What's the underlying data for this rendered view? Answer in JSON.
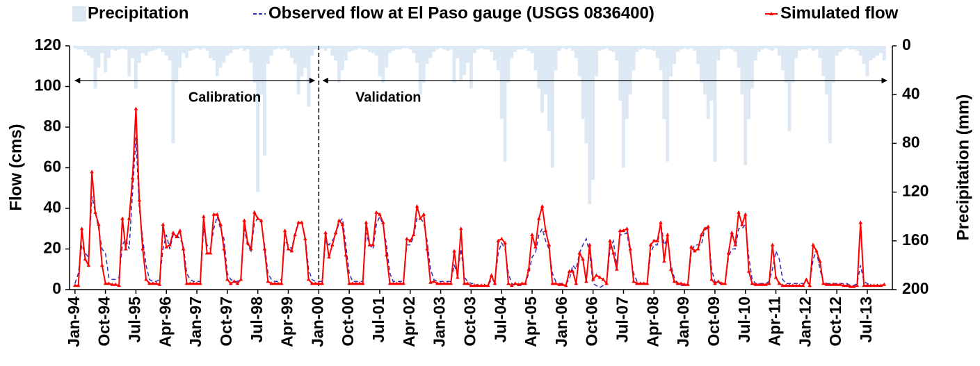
{
  "chart_data": {
    "type": "bar-line",
    "categories": [
      "Jan-94",
      null,
      null,
      null,
      null,
      null,
      null,
      null,
      null,
      "Oct-94",
      null,
      null,
      null,
      null,
      null,
      null,
      null,
      null,
      "Jul-95",
      null,
      null,
      null,
      null,
      null,
      null,
      null,
      null,
      "Apr-96",
      null,
      null,
      null,
      null,
      null,
      null,
      null,
      null,
      "Jan-97",
      null,
      null,
      null,
      null,
      null,
      null,
      null,
      null,
      "Oct-97",
      null,
      null,
      null,
      null,
      null,
      null,
      null,
      null,
      "Jul-98",
      null,
      null,
      null,
      null,
      null,
      null,
      null,
      null,
      "Apr-99",
      null,
      null,
      null,
      null,
      null,
      null,
      null,
      null,
      "Jan-00",
      null,
      null,
      null,
      null,
      null,
      null,
      null,
      null,
      "Oct-00",
      null,
      null,
      null,
      null,
      null,
      null,
      null,
      null,
      "Jul-01",
      null,
      null,
      null,
      null,
      null,
      null,
      null,
      null,
      "Apr-02",
      null,
      null,
      null,
      null,
      null,
      null,
      null,
      null,
      "Jan-03",
      null,
      null,
      null,
      null,
      null,
      null,
      null,
      null,
      "Oct-03",
      null,
      null,
      null,
      null,
      null,
      null,
      null,
      null,
      "Jul-04",
      null,
      null,
      null,
      null,
      null,
      null,
      null,
      null,
      "Apr-05",
      null,
      null,
      null,
      null,
      null,
      null,
      null,
      null,
      "Jan-06",
      null,
      null,
      null,
      null,
      null,
      null,
      null,
      null,
      "Oct-06",
      null,
      null,
      null,
      null,
      null,
      null,
      null,
      null,
      "Jul-07",
      null,
      null,
      null,
      null,
      null,
      null,
      null,
      null,
      "Apr-08",
      null,
      null,
      null,
      null,
      null,
      null,
      null,
      null,
      "Jan-09",
      null,
      null,
      null,
      null,
      null,
      null,
      null,
      null,
      "Oct-09",
      null,
      null,
      null,
      null,
      null,
      null,
      null,
      null,
      "Jul-10",
      null,
      null,
      null,
      null,
      null,
      null,
      null,
      null,
      "Apr-11",
      null,
      null,
      null,
      null,
      null,
      null,
      null,
      null,
      "Jan-12",
      null,
      null,
      null,
      null,
      null,
      null,
      null,
      null,
      "Oct-12",
      null,
      null,
      null,
      null,
      null,
      null,
      null,
      null,
      "Jul-13",
      null,
      null,
      null,
      null,
      null
    ],
    "series": [
      {
        "name": "Precipitation",
        "type": "bar",
        "axis": "y2",
        "color": "#dce9f5",
        "values": [
          2,
          3,
          3,
          5,
          8,
          10,
          35,
          18,
          6,
          22,
          10,
          3,
          4,
          3,
          2,
          3,
          25,
          10,
          35,
          14,
          6,
          8,
          5,
          4,
          3,
          2,
          5,
          8,
          12,
          80,
          30,
          18,
          6,
          10,
          4,
          3,
          2,
          3,
          2,
          4,
          10,
          12,
          25,
          18,
          14,
          8,
          6,
          3,
          3,
          2,
          4,
          3,
          14,
          30,
          120,
          40,
          90,
          15,
          8,
          3,
          2,
          3,
          2,
          4,
          10,
          15,
          40,
          25,
          18,
          50,
          8,
          3,
          3,
          2,
          4,
          2,
          8,
          12,
          30,
          20,
          12,
          5,
          4,
          3,
          2,
          3,
          3,
          5,
          6,
          8,
          25,
          30,
          18,
          6,
          4,
          3,
          3,
          2,
          2,
          3,
          6,
          14,
          40,
          30,
          15,
          10,
          5,
          3,
          2,
          3,
          4,
          3,
          30,
          10,
          28,
          24,
          14,
          35,
          6,
          3,
          2,
          3,
          3,
          5,
          12,
          20,
          60,
          95,
          30,
          10,
          5,
          3,
          3,
          2,
          4,
          6,
          20,
          35,
          55,
          40,
          70,
          100,
          20,
          4,
          2,
          3,
          2,
          4,
          10,
          25,
          60,
          80,
          130,
          110,
          25,
          4,
          3,
          2,
          4,
          5,
          12,
          45,
          100,
          60,
          40,
          20,
          5,
          3,
          2,
          3,
          3,
          4,
          10,
          20,
          60,
          95,
          25,
          15,
          5,
          3,
          2,
          3,
          2,
          4,
          15,
          30,
          40,
          60,
          45,
          95,
          12,
          3,
          3,
          2,
          3,
          5,
          18,
          40,
          98,
          60,
          35,
          12,
          5,
          3,
          2,
          3,
          4,
          2,
          8,
          20,
          30,
          70,
          30,
          10,
          4,
          3,
          3,
          2,
          4,
          3,
          10,
          25,
          40,
          80,
          30,
          8,
          5,
          3,
          2,
          3,
          3,
          4,
          8,
          15,
          25,
          12,
          10,
          8,
          6,
          12
        ]
      },
      {
        "name": "Observed flow at El Paso gauge (USGS 0836400)",
        "type": "line",
        "style": "dashed",
        "color": "#2e2eb8",
        "values": [
          3,
          8,
          22,
          18,
          16,
          46,
          38,
          30,
          20,
          18,
          6,
          5,
          5,
          6,
          22,
          25,
          20,
          48,
          75,
          40,
          25,
          12,
          5,
          4,
          4,
          5,
          20,
          27,
          20,
          27,
          27,
          25,
          22,
          8,
          5,
          4,
          4,
          4,
          30,
          22,
          20,
          30,
          36,
          30,
          25,
          8,
          5,
          4,
          4,
          6,
          30,
          22,
          19,
          33,
          35,
          33,
          22,
          8,
          5,
          4,
          4,
          5,
          24,
          22,
          20,
          28,
          33,
          33,
          26,
          10,
          5,
          4,
          4,
          4,
          24,
          22,
          24,
          27,
          33,
          35,
          22,
          8,
          4,
          4,
          4,
          4,
          28,
          22,
          20,
          32,
          36,
          32,
          22,
          8,
          4,
          4,
          4,
          4,
          22,
          22,
          26,
          35,
          35,
          33,
          24,
          10,
          5,
          4,
          4,
          4,
          4,
          4,
          12,
          8,
          20,
          6,
          4,
          3,
          3,
          2,
          2,
          2,
          2,
          5,
          4,
          18,
          23,
          20,
          8,
          3,
          2,
          2,
          2,
          3,
          8,
          16,
          18,
          27,
          30,
          24,
          20,
          8,
          4,
          3,
          3,
          3,
          5,
          12,
          10,
          18,
          22,
          25,
          18,
          3,
          2,
          1,
          2,
          3,
          20,
          24,
          12,
          27,
          27,
          28,
          18,
          8,
          4,
          3,
          3,
          3,
          18,
          22,
          22,
          33,
          22,
          25,
          12,
          6,
          3,
          2,
          2,
          3,
          18,
          22,
          22,
          22,
          30,
          30,
          10,
          4,
          3,
          3,
          3,
          16,
          20,
          20,
          30,
          30,
          32,
          16,
          5,
          3,
          3,
          3,
          3,
          4,
          10,
          19,
          15,
          5,
          3,
          3,
          3,
          3,
          3,
          3,
          3,
          3,
          15,
          19,
          10,
          4,
          3,
          3,
          3,
          3,
          3,
          3,
          3,
          2,
          2,
          3,
          12,
          4,
          3,
          2,
          2,
          2,
          2,
          2
        ]
      },
      {
        "name": "Simulated flow",
        "type": "line",
        "style": "solid-markers",
        "color": "#ff0000",
        "values": [
          2,
          2,
          30,
          15,
          12,
          58,
          38,
          32,
          12,
          3,
          3,
          2.5,
          2.5,
          2,
          35,
          20,
          35,
          55,
          89,
          44,
          20,
          5,
          3,
          3,
          3,
          2.5,
          32,
          21,
          22,
          28,
          26,
          29,
          20,
          3,
          3,
          3,
          3,
          3,
          36,
          18,
          18,
          37,
          37,
          32,
          20,
          5,
          3,
          4,
          3,
          5,
          34,
          23,
          20,
          38,
          35,
          34,
          20,
          4,
          3,
          3,
          3,
          3,
          29,
          20,
          19,
          27,
          33,
          33,
          25,
          5,
          3,
          3,
          3,
          3,
          28,
          16,
          22,
          28,
          34,
          32,
          17,
          3,
          3,
          3,
          3,
          3,
          33,
          22,
          22,
          38,
          37,
          33,
          17,
          3,
          3,
          3,
          3,
          3,
          25,
          24,
          27,
          41,
          35,
          37,
          20,
          3.5,
          4,
          3,
          3,
          3,
          3,
          3,
          19,
          6,
          30,
          3,
          3,
          2,
          2,
          2,
          2,
          2,
          2,
          7,
          3,
          24,
          25,
          23,
          3,
          2,
          3,
          2.5,
          3,
          3,
          10,
          27,
          21,
          35,
          41,
          29,
          22,
          3,
          3,
          2.5,
          2.5,
          2,
          9,
          9,
          3,
          18,
          15,
          4,
          22,
          5,
          7,
          6,
          5,
          3,
          24,
          18,
          10,
          29,
          29,
          30,
          20,
          4,
          3,
          3,
          3,
          3,
          22,
          24,
          24,
          33,
          14,
          27,
          10,
          4,
          3,
          3,
          2.5,
          2.5,
          21,
          19,
          20,
          27,
          30,
          31,
          5,
          3,
          4,
          3,
          3,
          18,
          28,
          22,
          38,
          32,
          37,
          9,
          3,
          2.5,
          2.5,
          2.5,
          2.5,
          3,
          22,
          6,
          3,
          2,
          2,
          2,
          2,
          2,
          2,
          2,
          5,
          2,
          22,
          19,
          14,
          3,
          2.5,
          2.5,
          2.5,
          2.5,
          2.5,
          2,
          2,
          1.5,
          1.5,
          2,
          33,
          2,
          2,
          2,
          2,
          2,
          2,
          2.5
        ]
      }
    ],
    "y_label": "Flow (cms)",
    "y2_label": "Precipitation (mm)",
    "ylim": [
      0,
      120
    ],
    "yticks": [
      0,
      20,
      40,
      60,
      80,
      100,
      120
    ],
    "y2lim": [
      200,
      0
    ],
    "y2ticks": [
      0,
      40,
      80,
      120,
      160,
      200
    ],
    "annotations": [
      {
        "text": "Calibration"
      },
      {
        "text": "Validation"
      }
    ]
  }
}
